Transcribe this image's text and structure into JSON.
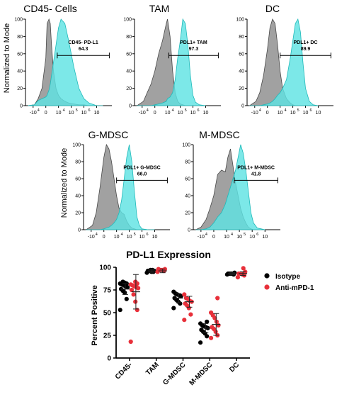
{
  "colors": {
    "isotype_fill": "#8c8c8c",
    "isotype_stroke": "#4a4a4a",
    "pdl1_fill": "#5fe3e3",
    "pdl1_stroke": "#1fb9b9",
    "isotype_dot": "#000000",
    "antipd1_dot": "#e8303a"
  },
  "chart_data": [
    {
      "type": "area",
      "title": "CD45- Cells",
      "ylabel": "Normalized to Mode",
      "yticks": [
        "0",
        "20",
        "40",
        "60",
        "80",
        "100"
      ],
      "xticks": [
        "-10",
        "0",
        "10",
        "10",
        "10",
        "10"
      ],
      "xtick_exponents": [
        "4",
        "",
        "4",
        "5",
        "6",
        ""
      ],
      "gate": {
        "label": "CD45- PD-L1",
        "value": "64.3",
        "range": [
          0.9,
          5.0
        ]
      },
      "x_scale": "biexponential",
      "x": [
        -1.4,
        -0.9,
        -0.6,
        -0.3,
        0.0,
        0.1,
        0.25,
        0.35,
        0.45,
        0.6,
        0.8,
        1.0,
        1.2,
        1.5,
        1.8,
        2.2,
        2.6,
        3.0,
        3.4,
        3.8,
        4.0,
        4.5
      ],
      "series": [
        {
          "y": [
            0,
            1,
            8,
            20,
            55,
            95,
            100,
            95,
            70,
            40,
            20,
            12,
            8,
            5,
            3,
            2,
            1,
            1,
            0,
            0,
            0,
            0
          ]
        },
        {
          "y": [
            0,
            1,
            6,
            8,
            10,
            12,
            18,
            25,
            35,
            50,
            70,
            90,
            100,
            95,
            75,
            45,
            20,
            8,
            3,
            1,
            0,
            0
          ]
        }
      ]
    },
    {
      "type": "area",
      "title": "TAM",
      "yticks": [
        "0",
        "20",
        "40",
        "60",
        "80",
        "100"
      ],
      "xticks": [
        "-10",
        "0",
        "10",
        "10",
        "10",
        "10"
      ],
      "xtick_exponents": [
        "4",
        "",
        "4",
        "5",
        "6",
        ""
      ],
      "gate": {
        "label": "PDL1+ TAM",
        "value": "97.3",
        "range": [
          1.1,
          5.0
        ]
      },
      "x_scale": "biexponential",
      "x": [
        -1.4,
        -0.9,
        -0.6,
        -0.3,
        0.0,
        0.3,
        0.6,
        0.9,
        1.0,
        1.2,
        1.4,
        1.6,
        1.8,
        2.0,
        2.2,
        2.4,
        2.6,
        2.8,
        3.0,
        3.2,
        3.5,
        4.0
      ],
      "series": [
        {
          "y": [
            0,
            5,
            15,
            25,
            40,
            60,
            75,
            95,
            100,
            80,
            40,
            15,
            5,
            2,
            1,
            0,
            0,
            0,
            0,
            0,
            0,
            0
          ]
        },
        {
          "y": [
            0,
            0,
            0,
            0,
            1,
            2,
            3,
            5,
            8,
            10,
            15,
            30,
            55,
            75,
            100,
            95,
            70,
            35,
            12,
            4,
            1,
            0
          ]
        }
      ]
    },
    {
      "type": "area",
      "title": "DC",
      "yticks": [
        "0",
        "20",
        "40",
        "60",
        "80",
        "100"
      ],
      "xticks": [
        "-10",
        "0",
        "10",
        "10",
        "10",
        "10"
      ],
      "xtick_exponents": [
        "4",
        "",
        "4",
        "5",
        "6",
        ""
      ],
      "gate": {
        "label": "PDL1+ DC",
        "value": "89.9",
        "range": [
          1.0,
          5.0
        ]
      },
      "x_scale": "biexponential",
      "x": [
        -1.4,
        -0.9,
        -0.6,
        -0.3,
        0.0,
        0.2,
        0.4,
        0.6,
        0.8,
        1.0,
        1.2,
        1.5,
        1.8,
        2.0,
        2.2,
        2.4,
        2.6,
        2.8,
        3.0,
        3.3,
        3.6,
        4.0
      ],
      "series": [
        {
          "y": [
            0,
            5,
            15,
            35,
            65,
            90,
            100,
            95,
            70,
            40,
            20,
            8,
            3,
            1,
            0,
            0,
            0,
            0,
            0,
            0,
            0,
            0
          ]
        },
        {
          "y": [
            0,
            0,
            0,
            1,
            2,
            3,
            5,
            8,
            12,
            15,
            20,
            30,
            55,
            75,
            95,
            100,
            85,
            50,
            20,
            5,
            1,
            0
          ]
        }
      ]
    },
    {
      "type": "area",
      "title": "G-MDSC",
      "ylabel": "Normalized to Mode",
      "yticks": [
        "0",
        "20",
        "40",
        "60",
        "80",
        "100"
      ],
      "xticks": [
        "-10",
        "0",
        "10",
        "10",
        "10",
        "10"
      ],
      "xtick_exponents": [
        "4",
        "",
        "4",
        "5",
        "6",
        ""
      ],
      "gate": {
        "label": "PDL1+ G-MDSC",
        "value": "66.0",
        "range": [
          1.0,
          5.0
        ]
      },
      "x_scale": "biexponential",
      "x": [
        -1.4,
        -0.9,
        -0.6,
        -0.3,
        0.0,
        0.2,
        0.4,
        0.6,
        0.8,
        1.0,
        1.2,
        1.4,
        1.6,
        1.8,
        2.0,
        2.2,
        2.4,
        2.6,
        2.8,
        3.0,
        3.5,
        4.0
      ],
      "series": [
        {
          "y": [
            0,
            5,
            20,
            50,
            85,
            100,
            95,
            80,
            60,
            40,
            25,
            20,
            18,
            10,
            5,
            2,
            1,
            0,
            0,
            0,
            0,
            0
          ]
        },
        {
          "y": [
            0,
            0,
            0,
            0,
            1,
            2,
            3,
            5,
            8,
            12,
            20,
            35,
            60,
            85,
            100,
            80,
            45,
            15,
            5,
            1,
            0,
            0
          ]
        }
      ]
    },
    {
      "type": "area",
      "title": "M-MDSC",
      "yticks": [
        "0",
        "20",
        "40",
        "60",
        "80",
        "100"
      ],
      "xticks": [
        "-10",
        "0",
        "10",
        "10",
        "10",
        "10"
      ],
      "xtick_exponents": [
        "4",
        "",
        "4",
        "5",
        "6",
        ""
      ],
      "gate": {
        "label": "PDL1+ M-MDSC",
        "value": "41.8",
        "range": [
          1.6,
          5.0
        ]
      },
      "x_scale": "biexponential",
      "x": [
        -1.4,
        -1.0,
        -0.6,
        -0.3,
        0.0,
        0.3,
        0.6,
        0.9,
        1.1,
        1.3,
        1.5,
        1.7,
        1.9,
        2.1,
        2.3,
        2.5,
        2.7,
        2.9,
        3.1,
        3.4,
        3.7,
        4.0
      ],
      "series": [
        {
          "y": [
            0,
            3,
            12,
            25,
            40,
            65,
            70,
            68,
            85,
            95,
            75,
            55,
            40,
            25,
            15,
            8,
            3,
            1,
            0,
            0,
            0,
            0
          ]
        },
        {
          "y": [
            0,
            0,
            1,
            3,
            8,
            15,
            20,
            30,
            40,
            50,
            60,
            70,
            85,
            100,
            90,
            70,
            45,
            20,
            8,
            2,
            1,
            0
          ]
        }
      ]
    },
    {
      "type": "scatter",
      "title": "PD-L1 Expression",
      "ylabel": "Percent Positive",
      "ylim": [
        0,
        100
      ],
      "yticks": [
        "0",
        "25",
        "50",
        "75",
        "100"
      ],
      "categories": [
        "CD45-",
        "TAM",
        "G-MDSC",
        "M-MDSC",
        "DC"
      ],
      "legend_position": "right",
      "series": [
        {
          "name": "Isotype",
          "mean": [
            76,
            96,
            66,
            33,
            93
          ],
          "error": [
            6,
            1.5,
            5,
            5,
            1
          ],
          "points": [
            [
              53,
              65,
              72,
              74,
              76,
              78,
              79,
              80,
              81,
              82,
              82,
              83,
              84
            ],
            [
              94,
              95,
              95,
              96,
              96,
              96,
              97,
              97
            ],
            [
              55,
              60,
              62,
              64,
              66,
              68,
              69,
              70,
              71,
              73
            ],
            [
              17,
              24,
              27,
              29,
              31,
              33,
              34,
              35,
              36,
              38,
              40
            ],
            [
              92,
              92,
              93,
              93,
              93,
              94
            ]
          ]
        },
        {
          "name": "Anti-mPD-1",
          "mean": [
            73,
            96,
            62,
            37,
            93
          ],
          "error": [
            19,
            2,
            6,
            12,
            2
          ],
          "points": [
            [
              18,
              53,
              62,
              70,
              75,
              77,
              78,
              79,
              80,
              81,
              82,
              84
            ],
            [
              95,
              96,
              97,
              97,
              98,
              98
            ],
            [
              42,
              48,
              55,
              58,
              60,
              62,
              63,
              65,
              66,
              70
            ],
            [
              22,
              25,
              29,
              32,
              34,
              36,
              40,
              44,
              47,
              50,
              66
            ],
            [
              89,
              91,
              92,
              93,
              93,
              95,
              99
            ]
          ]
        }
      ]
    }
  ]
}
